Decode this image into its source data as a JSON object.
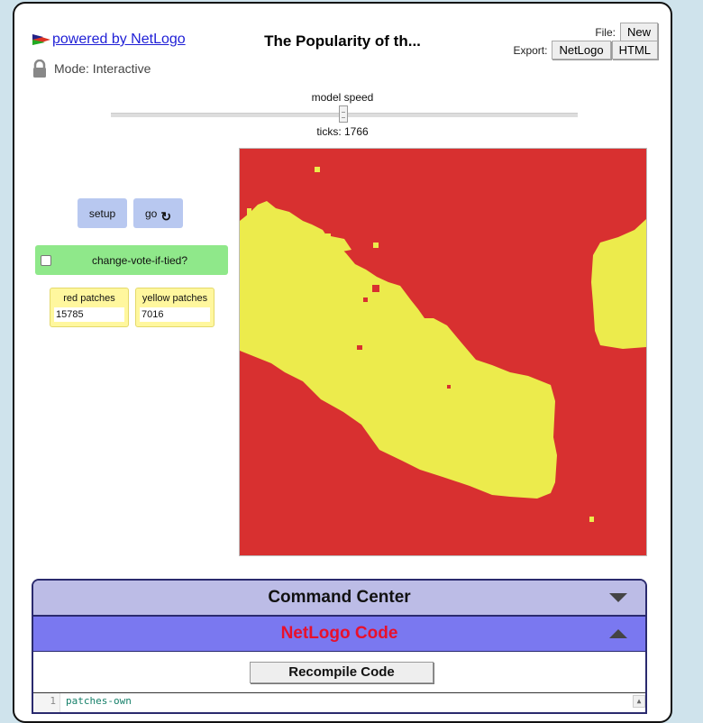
{
  "header": {
    "powered_by": " powered by NetLogo",
    "mode": "Mode: Interactive",
    "title": "The Popularity of th...",
    "file_label": "File:",
    "new_label": "New",
    "export_label": "Export:",
    "netlogo_label": "NetLogo",
    "html_label": "HTML"
  },
  "speed": {
    "label": "model speed",
    "value": 0.5,
    "ticks": "ticks: 1766"
  },
  "widgets": {
    "setup_label": "setup",
    "go_label": "go",
    "go_icon": "↻",
    "switch_label": "change-vote-if-tied?",
    "switch_on": false,
    "monitor_red_label": "red patches",
    "monitor_red_value": "15785",
    "monitor_yellow_label": "yellow patches",
    "monitor_yellow_value": "7016"
  },
  "world": {
    "background_color": "#d83030",
    "patch_color": "#eceb4c"
  },
  "panels": {
    "command_center": "Command Center",
    "netlogo_code": "NetLogo Code",
    "recompile": "Recompile Code",
    "line_number": "1",
    "code_line": "patches-own"
  }
}
